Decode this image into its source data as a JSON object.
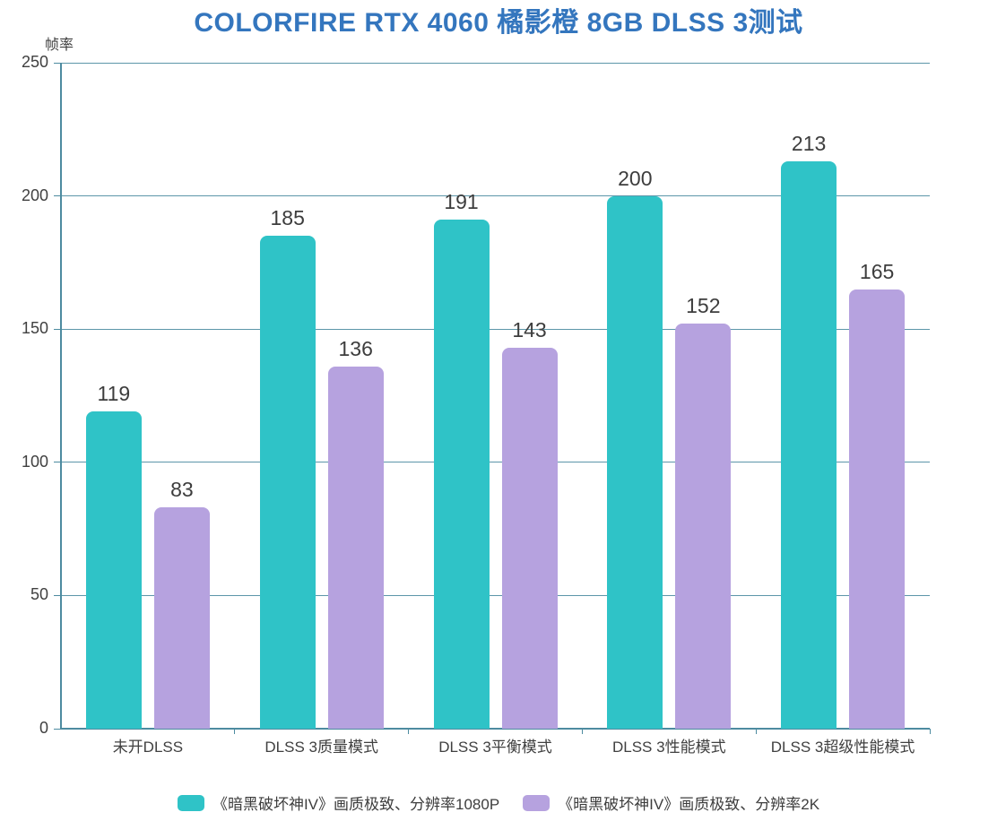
{
  "chart_data": {
    "type": "bar",
    "title": "COLORFIRE RTX 4060 橘影橙 8GB DLSS 3测试",
    "title_color": "#3476BE",
    "ylabel": "帧率",
    "xlabel": "",
    "categories": [
      "未开DLSS",
      "DLSS 3质量模式",
      "DLSS 3平衡模式",
      "DLSS 3性能模式",
      "DLSS 3超级性能模式"
    ],
    "series": [
      {
        "name": "《暗黑破坏神IV》画质极致、分辨率1080P",
        "color": "#2FC3C7",
        "values": [
          119,
          185,
          191,
          200,
          213
        ]
      },
      {
        "name": "《暗黑破坏神IV》画质极致、分辨率2K",
        "color": "#B6A2DF",
        "values": [
          83,
          136,
          143,
          152,
          165
        ]
      }
    ],
    "ylim": [
      0,
      250
    ],
    "yticks": [
      0,
      50,
      100,
      150,
      200,
      250
    ],
    "grid": true,
    "legend_position": "bottom",
    "axis_color": "#4D8BA0",
    "gridline_color": "#5C96A9",
    "label_color": "#404040"
  }
}
